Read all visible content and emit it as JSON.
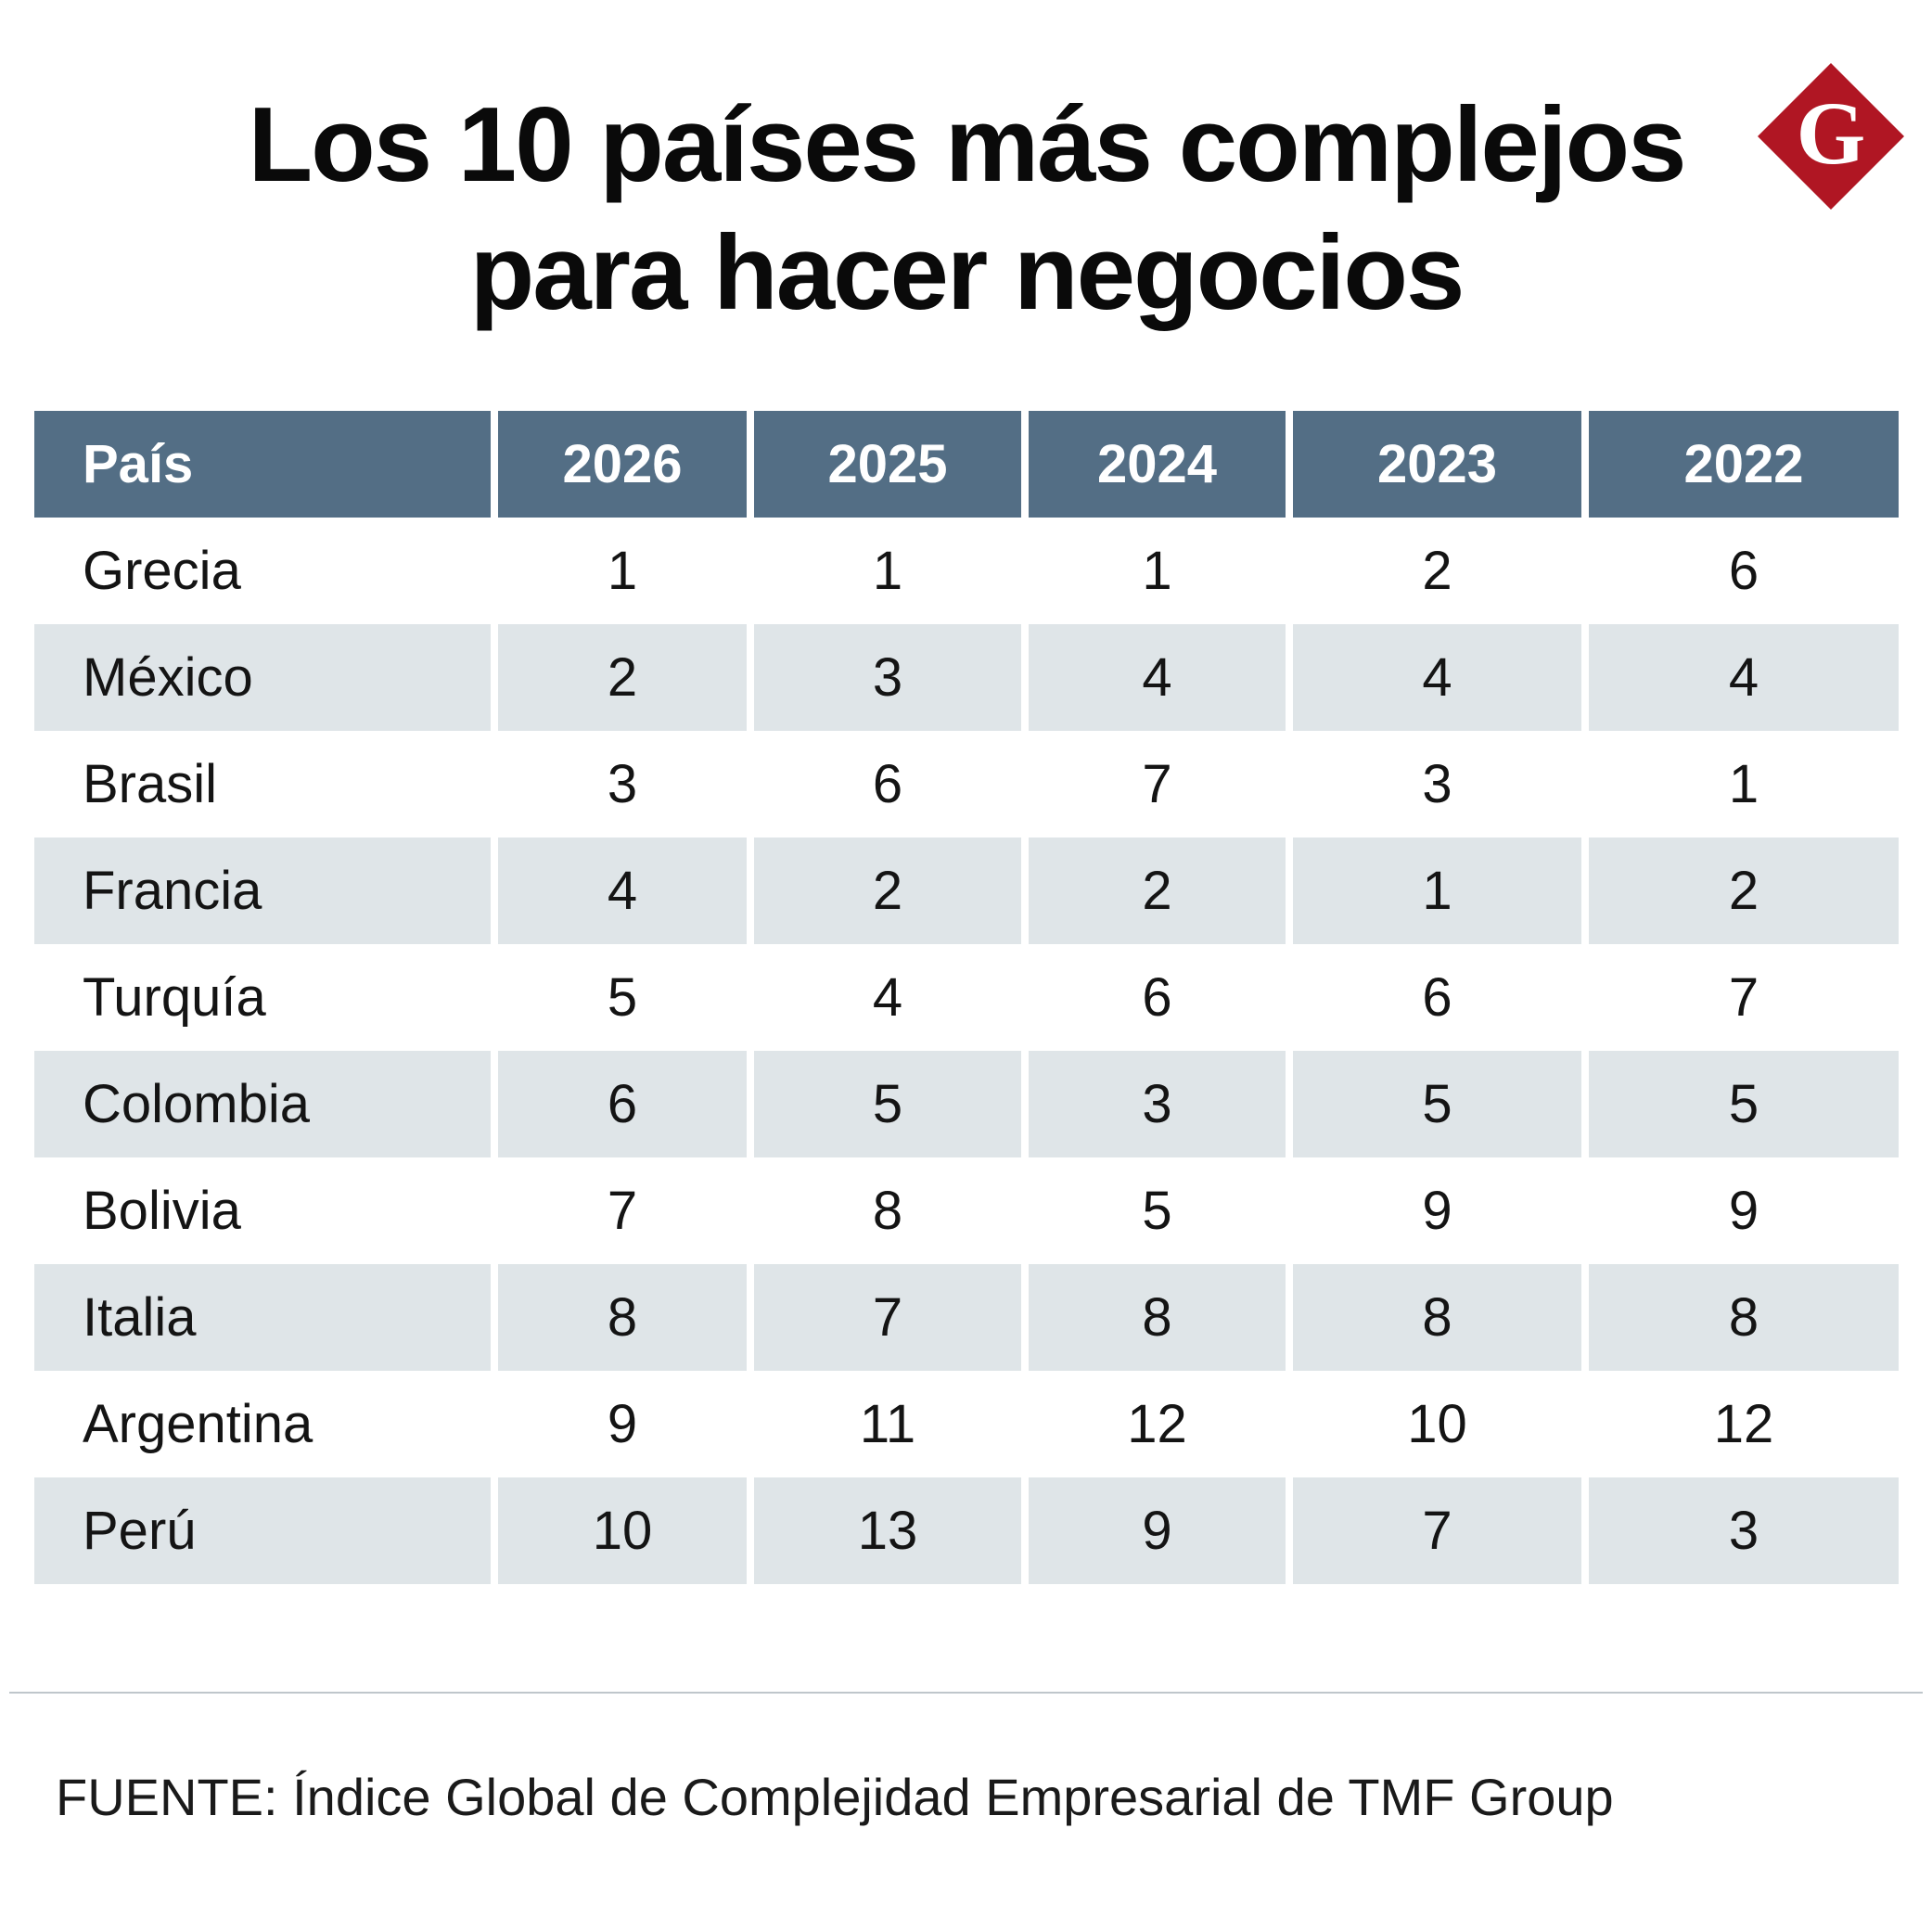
{
  "title": [
    "Los 10 países más complejos",
    "para hacer negocios"
  ],
  "logo": {
    "letter": "G",
    "color": "#b01623"
  },
  "colors": {
    "header_bg": "#536e85",
    "row_shade": "#dfe5e8"
  },
  "chart_data": {
    "type": "table",
    "columns": [
      "País",
      "2026",
      "2025",
      "2024",
      "2023",
      "2022"
    ],
    "rows": [
      [
        "Grecia",
        "1",
        "1",
        "1",
        "2",
        "6"
      ],
      [
        "México",
        "2",
        "3",
        "4",
        "4",
        "4"
      ],
      [
        "Brasil",
        "3",
        "6",
        "7",
        "3",
        "1"
      ],
      [
        "Francia",
        "4",
        "2",
        "2",
        "1",
        "2"
      ],
      [
        "Turquía",
        "5",
        "4",
        "6",
        "6",
        "7"
      ],
      [
        "Colombia",
        "6",
        "5",
        "3",
        "5",
        "5"
      ],
      [
        "Bolivia",
        "7",
        "8",
        "5",
        "9",
        "9"
      ],
      [
        "Italia",
        "8",
        "7",
        "8",
        "8",
        "8"
      ],
      [
        "Argentina",
        "9",
        "11",
        "12",
        "10",
        "12"
      ],
      [
        "Perú",
        "10",
        "13",
        "9",
        "7",
        "3"
      ]
    ]
  },
  "source": "FUENTE: Índice Global de Complejidad Empresarial de TMF Group"
}
